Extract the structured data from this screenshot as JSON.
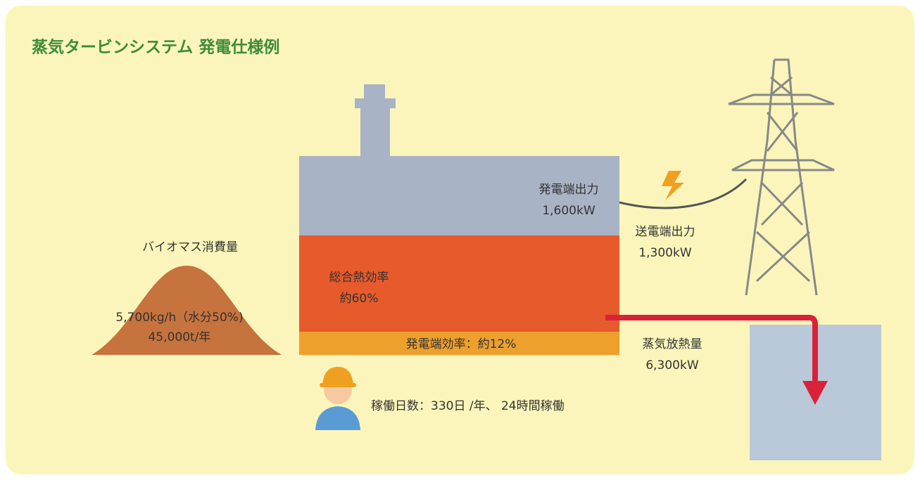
{
  "header": {
    "title": "蒸気タービンシステム 発電仕様例"
  },
  "biomass": {
    "label": "バイオマス消費量",
    "rate": "5,700kg/h（水分50%)",
    "annual": "45,000t/年"
  },
  "plant": {
    "gross_output_label": "発電端出力",
    "gross_output": "1,600kW",
    "thermal_efficiency_label": "総合熱効率",
    "thermal_efficiency": "約60%",
    "power_efficiency": "発電端効率：約12%"
  },
  "transmission": {
    "label": "送電端出力",
    "value": "1,300kW"
  },
  "heat": {
    "label": "蒸気放熱量",
    "value": "6,300kW"
  },
  "operation": {
    "label": "稼働日数：330日 /年、 24時間稼働"
  }
}
